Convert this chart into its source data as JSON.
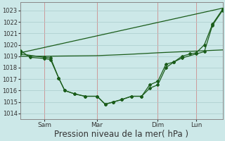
{
  "bg_color": "#cce8e8",
  "grid_color": "#aacccc",
  "line_color": "#1a5c1a",
  "xlabel": "Pression niveau de la mer( hPa )",
  "xlabel_fontsize": 8.5,
  "ylim": [
    1013.5,
    1023.7
  ],
  "yticks": [
    1014,
    1015,
    1016,
    1017,
    1018,
    1019,
    1020,
    1021,
    1022,
    1023
  ],
  "xtick_labels": [
    "Sam",
    "Mar",
    "Dim",
    "Lun"
  ],
  "xtick_positions": [
    0.12,
    0.38,
    0.68,
    0.87
  ],
  "vline_positions": [
    0.12,
    0.38,
    0.68,
    0.87
  ],
  "xlim": [
    0.0,
    1.0
  ],
  "line1_x": [
    0.0,
    0.05,
    0.12,
    0.15,
    0.19,
    0.22,
    0.27,
    0.32,
    0.38,
    0.42,
    0.46,
    0.5,
    0.55,
    0.6,
    0.64,
    0.68,
    0.72,
    0.76,
    0.8,
    0.84,
    0.87,
    0.91,
    0.95,
    1.0
  ],
  "line1_y": [
    1019.5,
    1018.9,
    1018.8,
    1018.7,
    1017.1,
    1016.0,
    1015.7,
    1015.5,
    1015.5,
    1014.8,
    1015.0,
    1015.2,
    1015.5,
    1015.5,
    1016.5,
    1016.8,
    1018.3,
    1018.5,
    1019.0,
    1019.2,
    1019.3,
    1020.0,
    1021.8,
    1023.1
  ],
  "line2_x": [
    0.0,
    0.12,
    0.15,
    0.19,
    0.22,
    0.27,
    0.32,
    0.38,
    0.42,
    0.46,
    0.5,
    0.55,
    0.6,
    0.64,
    0.68,
    0.72,
    0.76,
    0.8,
    0.87,
    0.91,
    0.95,
    1.0
  ],
  "line2_y": [
    1019.2,
    1018.9,
    1018.85,
    1017.1,
    1016.0,
    1015.7,
    1015.5,
    1015.5,
    1014.8,
    1015.0,
    1015.2,
    1015.5,
    1015.5,
    1016.2,
    1016.5,
    1018.0,
    1018.5,
    1018.85,
    1019.2,
    1019.4,
    1021.7,
    1023.0
  ],
  "line3_x": [
    0.0,
    0.12,
    0.38,
    0.52,
    0.68,
    0.87,
    1.0
  ],
  "line3_y": [
    1019.0,
    1019.0,
    1019.05,
    1019.15,
    1019.3,
    1019.45,
    1019.55
  ],
  "line4_x": [
    0.0,
    1.0
  ],
  "line4_y": [
    1019.3,
    1023.2
  ]
}
